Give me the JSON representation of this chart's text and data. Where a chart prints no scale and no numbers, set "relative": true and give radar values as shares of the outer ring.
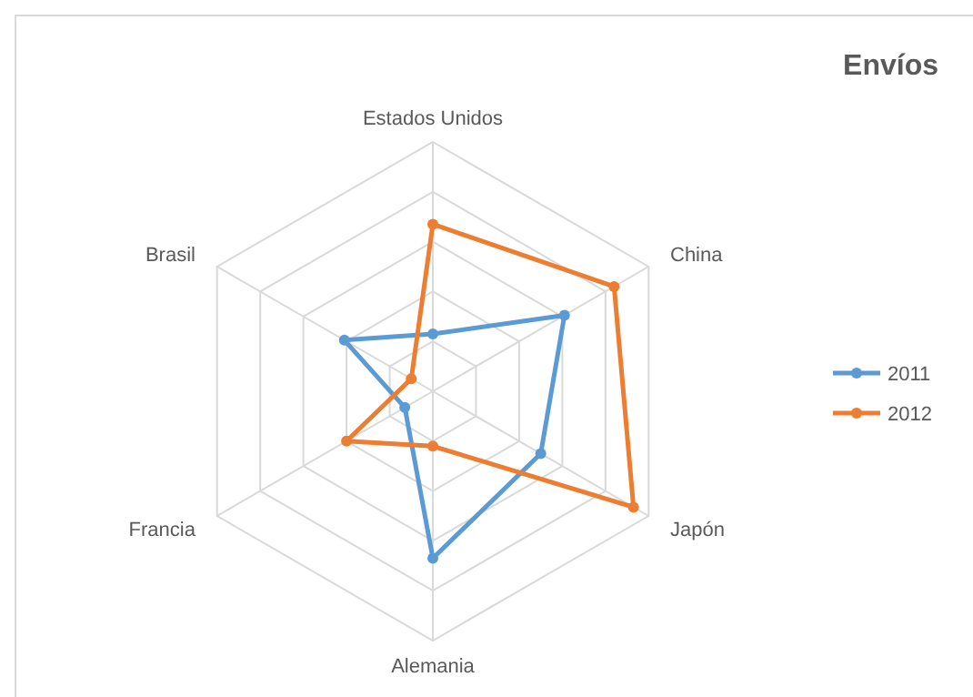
{
  "chart_data": {
    "type": "radar",
    "title": "Envíos",
    "relative": true,
    "categories": [
      "Estados Unidos",
      "China",
      "Japón",
      "Alemania",
      "Francia",
      "Brasil"
    ],
    "series": [
      {
        "name": "2011",
        "color": "#5b9bd5",
        "values": [
          0.23,
          0.61,
          0.5,
          0.67,
          0.13,
          0.41
        ]
      },
      {
        "name": "2012",
        "color": "#ed7d31",
        "values": [
          0.67,
          0.84,
          0.93,
          0.22,
          0.4,
          0.1
        ]
      }
    ],
    "legend": "right",
    "marker": "circle",
    "grid": true
  }
}
